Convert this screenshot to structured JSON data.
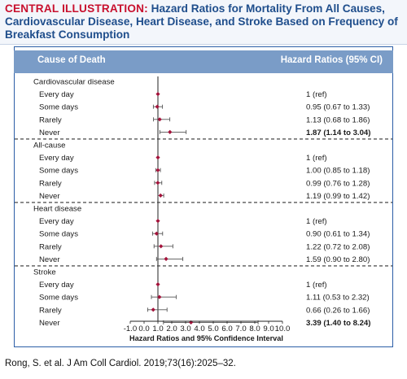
{
  "banner": {
    "label": "CENTRAL ILLUSTRATION:",
    "title": "Hazard Ratios for Mortality From All Causes, Cardiovascular Disease, Heart Disease, and Stroke Based on Frequency of Breakfast Consumption"
  },
  "table_header": {
    "cause": "Cause of Death",
    "hr": "Hazard Ratios (95% CI)"
  },
  "citation": "Rong, S. et al. J Am Coll Cardiol. 2019;73(16):2025–32.",
  "colors": {
    "header_bg": "#7a9cc7",
    "marker": "#a3123a",
    "title_blue": "#1f4e8c",
    "label_red": "#c8102e"
  },
  "chart_data": {
    "type": "forest",
    "xlabel": "Hazard Ratios and 95% Confidence Interval",
    "xticks": [
      "-1.0",
      "0.0",
      "1.0",
      "2.0",
      "3.0",
      "4.0",
      "5.0",
      "6.0",
      "7.0",
      "8.0",
      "9.0",
      "10.0"
    ],
    "xlim": [
      -1.0,
      10.0
    ],
    "reference_line": 1.0,
    "groups": [
      {
        "name": "Cardiovascular disease",
        "rows": [
          {
            "label": "Every day",
            "hr": 1.0,
            "low": 1.0,
            "high": 1.0,
            "text": "1 (ref)",
            "bold": false
          },
          {
            "label": "Some days",
            "hr": 0.95,
            "low": 0.67,
            "high": 1.33,
            "text": "0.95 (0.67 to 1.33)",
            "bold": false
          },
          {
            "label": "Rarely",
            "hr": 1.13,
            "low": 0.68,
            "high": 1.86,
            "text": "1.13 (0.68 to 1.86)",
            "bold": false
          },
          {
            "label": "Never",
            "hr": 1.87,
            "low": 1.14,
            "high": 3.04,
            "text": "1.87 (1.14 to 3.04)",
            "bold": true
          }
        ]
      },
      {
        "name": "All-cause",
        "rows": [
          {
            "label": "Every day",
            "hr": 1.0,
            "low": 1.0,
            "high": 1.0,
            "text": "1 (ref)",
            "bold": false
          },
          {
            "label": "Some days",
            "hr": 1.0,
            "low": 0.85,
            "high": 1.18,
            "text": "1.00 (0.85 to 1.18)",
            "bold": false
          },
          {
            "label": "Rarely",
            "hr": 0.99,
            "low": 0.76,
            "high": 1.28,
            "text": "0.99 (0.76 to 1.28)",
            "bold": false
          },
          {
            "label": "Never",
            "hr": 1.19,
            "low": 0.99,
            "high": 1.42,
            "text": "1.19 (0.99 to 1.42)",
            "bold": false
          }
        ]
      },
      {
        "name": "Heart disease",
        "rows": [
          {
            "label": "Every day",
            "hr": 1.0,
            "low": 1.0,
            "high": 1.0,
            "text": "1 (ref)",
            "bold": false
          },
          {
            "label": "Some days",
            "hr": 0.9,
            "low": 0.61,
            "high": 1.34,
            "text": "0.90 (0.61 to 1.34)",
            "bold": false
          },
          {
            "label": "Rarely",
            "hr": 1.22,
            "low": 0.72,
            "high": 2.08,
            "text": "1.22 (0.72 to 2.08)",
            "bold": false
          },
          {
            "label": "Never",
            "hr": 1.59,
            "low": 0.9,
            "high": 2.8,
            "text": "1.59 (0.90 to 2.80)",
            "bold": false
          }
        ]
      },
      {
        "name": "Stroke",
        "rows": [
          {
            "label": "Every day",
            "hr": 1.0,
            "low": 1.0,
            "high": 1.0,
            "text": "1 (ref)",
            "bold": false
          },
          {
            "label": "Some days",
            "hr": 1.11,
            "low": 0.53,
            "high": 2.32,
            "text": "1.11 (0.53 to 2.32)",
            "bold": false
          },
          {
            "label": "Rarely",
            "hr": 0.66,
            "low": 0.26,
            "high": 1.66,
            "text": "0.66 (0.26 to 1.66)",
            "bold": false
          },
          {
            "label": "Never",
            "hr": 3.39,
            "low": 1.4,
            "high": 8.24,
            "text": "3.39 (1.40 to 8.24)",
            "bold": true
          }
        ]
      }
    ]
  }
}
